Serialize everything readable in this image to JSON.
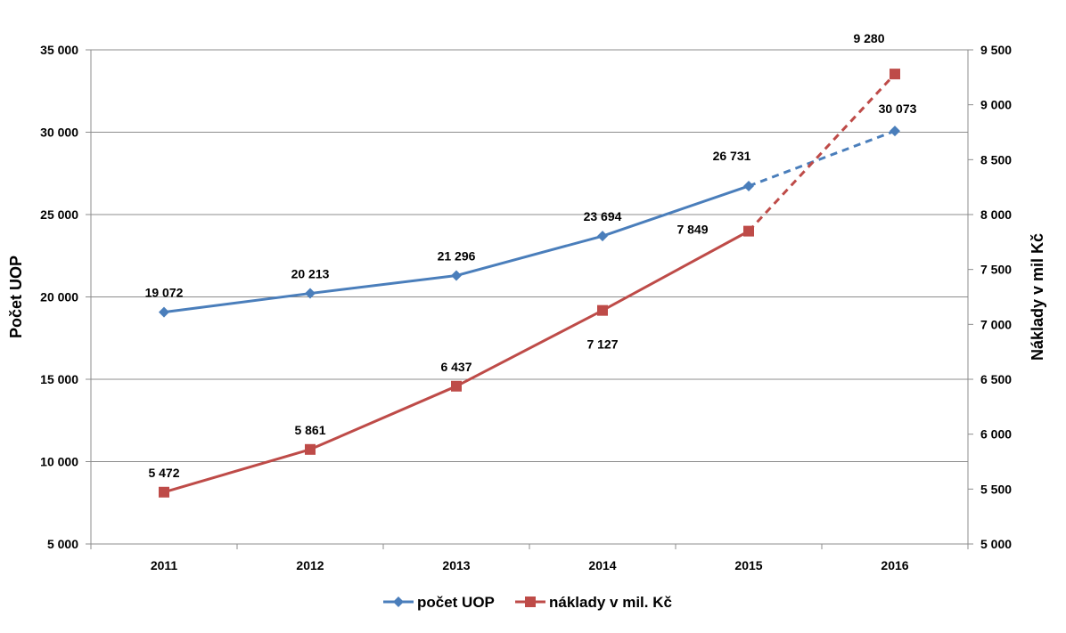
{
  "chart_data": {
    "type": "line",
    "categories": [
      "2011",
      "2012",
      "2013",
      "2014",
      "2015",
      "2016"
    ],
    "series": [
      {
        "name": "počet UOP",
        "axis": "left",
        "color": "#4a7ebb",
        "values": [
          19072,
          20213,
          21296,
          23694,
          26731,
          30073
        ],
        "labels": [
          "19 072",
          "20 213",
          "21 296",
          "23 694",
          "26 731",
          "30 073"
        ],
        "projected_from_index": 4
      },
      {
        "name": "náklady v mil. Kč",
        "axis": "right",
        "color": "#be4b48",
        "values": [
          5472,
          5861,
          6437,
          7127,
          7849,
          9280
        ],
        "labels": [
          "5 472",
          "5 861",
          "6 437",
          "7 127",
          "7 849",
          "9 280"
        ],
        "projected_from_index": 4
      }
    ],
    "ylabel": "Počet UOP",
    "y2label": "Náklady v mil Kč",
    "ylim": [
      5000,
      35000
    ],
    "y2lim": [
      5000,
      9500
    ],
    "yticks": [
      "5 000",
      "10 000",
      "15 000",
      "20 000",
      "25 000",
      "30 000",
      "35 000"
    ],
    "y2ticks": [
      "5 000",
      "5 500",
      "6 000",
      "6 500",
      "7 000",
      "7 500",
      "8 000",
      "8 500",
      "9 000",
      "9 500"
    ],
    "grid": true,
    "legend_position": "bottom"
  }
}
